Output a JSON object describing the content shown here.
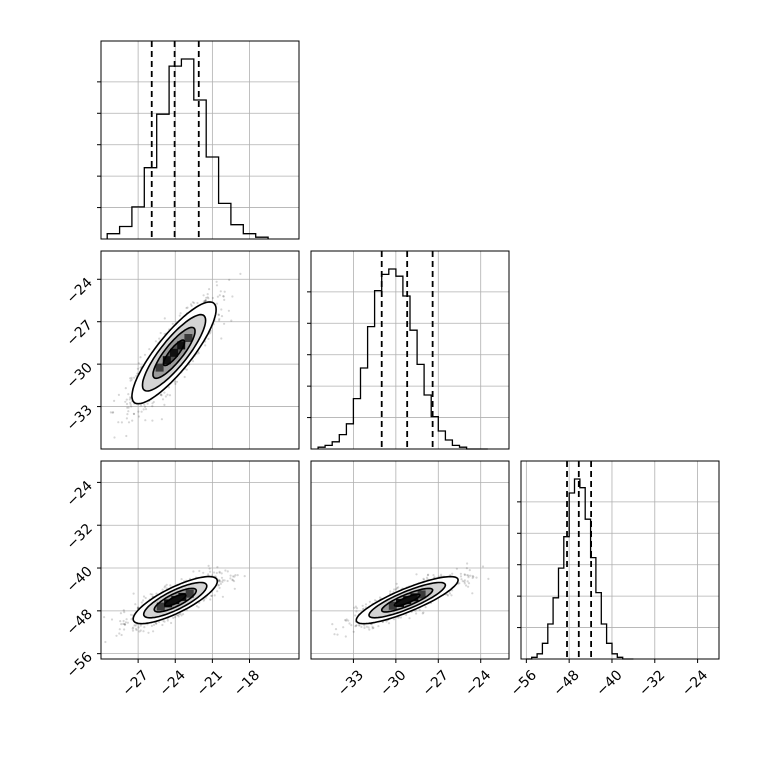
{
  "chart_data": {
    "type": "corner",
    "parameters": 3,
    "grid": true,
    "axes": {
      "p0": {
        "range": [
          -30,
          -14
        ],
        "ticks": [
          -27,
          -24,
          -21,
          -18
        ],
        "tick_labels": [
          "−27",
          "−24",
          "−21",
          "−18"
        ]
      },
      "p1": {
        "range": [
          -36,
          -22
        ],
        "ticks": [
          -33,
          -30,
          -27,
          -24
        ],
        "tick_labels": [
          "−33",
          "−30",
          "−27",
          "−24"
        ]
      },
      "p2": {
        "range": [
          -57,
          -20
        ],
        "ticks": [
          -56,
          -48,
          -40,
          -32,
          -24
        ],
        "tick_labels": [
          "−56",
          "−48",
          "−40",
          "−32",
          "−24"
        ]
      }
    },
    "marginals": [
      {
        "param": "p0",
        "bin_edges": [
          -29.5,
          -28.5,
          -27.5,
          -26.5,
          -25.5,
          -24.5,
          -23.5,
          -22.5,
          -21.5,
          -20.5,
          -19.5,
          -18.5,
          -17.5,
          -16.5
        ],
        "counts": [
          3,
          7,
          18,
          40,
          70,
          97,
          101,
          78,
          46,
          20,
          8,
          3,
          1
        ],
        "quantiles": [
          -25.9,
          -24.05,
          -22.1
        ]
      },
      {
        "param": "p1",
        "bin_edges": [
          -35.5,
          -35.0,
          -34.5,
          -34.0,
          -33.5,
          -33.0,
          -32.5,
          -32.0,
          -31.5,
          -31.0,
          -30.5,
          -30.0,
          -29.5,
          -29.0,
          -28.5,
          -28.0,
          -27.5,
          -27.0,
          -26.5,
          -26.0,
          -25.5,
          -25.0,
          -24.5,
          -24.0,
          -23.5
        ],
        "counts": [
          1,
          2,
          4,
          8,
          14,
          28,
          45,
          68,
          88,
          97,
          100,
          96,
          85,
          66,
          47,
          30,
          18,
          10,
          5,
          2,
          1,
          0,
          0,
          0
        ],
        "quantiles": [
          -31.0,
          -29.2,
          -27.4
        ]
      },
      {
        "param": "p2",
        "bin_edges": [
          -56,
          -55,
          -54,
          -53,
          -52,
          -51,
          -50,
          -49,
          -48,
          -47,
          -46,
          -45,
          -44,
          -43,
          -42,
          -41,
          -40,
          -39,
          -38,
          -37,
          -36
        ],
        "counts": [
          0,
          1,
          3,
          9,
          20,
          35,
          52,
          70,
          95,
          103,
          98,
          80,
          58,
          38,
          20,
          9,
          3,
          1,
          0,
          0
        ],
        "quantiles": [
          -48.4,
          -46.2,
          -43.9
        ]
      }
    ],
    "scatter_2d": [
      {
        "x": "p0",
        "y": "p1",
        "center": [
          -24.1,
          -29.2
        ],
        "sd": [
          1.7,
          1.8
        ],
        "rho": 0.85
      },
      {
        "x": "p0",
        "y": "p2",
        "center": [
          -24.0,
          -46.0
        ],
        "sd": [
          1.7,
          2.2
        ],
        "rho": 0.8
      },
      {
        "x": "p1",
        "y": "p2",
        "center": [
          -29.2,
          -46.0
        ],
        "sd": [
          1.8,
          2.2
        ],
        "rho": 0.85
      }
    ]
  }
}
